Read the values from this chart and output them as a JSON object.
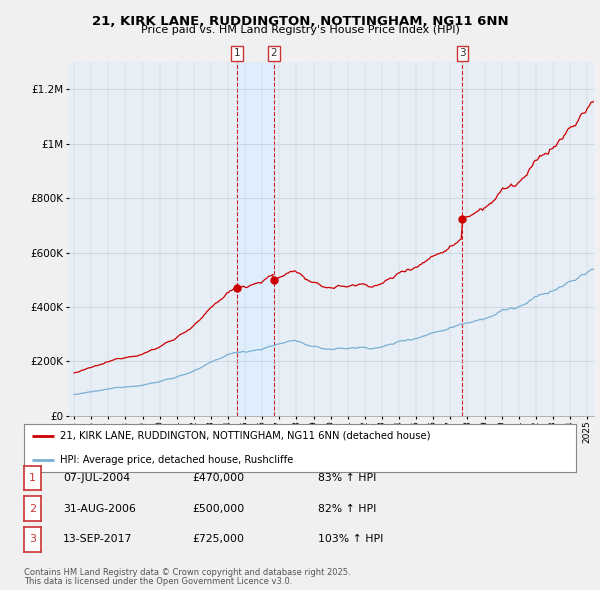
{
  "title": "21, KIRK LANE, RUDDINGTON, NOTTINGHAM, NG11 6NN",
  "subtitle": "Price paid vs. HM Land Registry's House Price Index (HPI)",
  "hpi_label": "HPI: Average price, detached house, Rushcliffe",
  "property_label": "21, KIRK LANE, RUDDINGTON, NOTTINGHAM, NG11 6NN (detached house)",
  "footer1": "Contains HM Land Registry data © Crown copyright and database right 2025.",
  "footer2": "This data is licensed under the Open Government Licence v3.0.",
  "sale_points": [
    {
      "label": "1",
      "date_x": 2004.52,
      "price": 470000,
      "date_str": "07-JUL-2004",
      "price_str": "£470,000",
      "pct": "83% ↑ HPI"
    },
    {
      "label": "2",
      "date_x": 2006.67,
      "price": 500000,
      "date_str": "31-AUG-2006",
      "price_str": "£500,000",
      "pct": "82% ↑ HPI"
    },
    {
      "label": "3",
      "date_x": 2017.71,
      "price": 725000,
      "date_str": "13-SEP-2017",
      "price_str": "£725,000",
      "pct": "103% ↑ HPI"
    }
  ],
  "ylim": [
    0,
    1300000
  ],
  "xlim_start": 1994.7,
  "xlim_end": 2025.4,
  "property_color": "#cc0000",
  "hpi_color": "#7aafd4",
  "sale_vline_color": "#cc0000",
  "shade_color": "#ddeeff",
  "background_color": "#f0f0f0",
  "plot_bg_color": "#e8eef5"
}
